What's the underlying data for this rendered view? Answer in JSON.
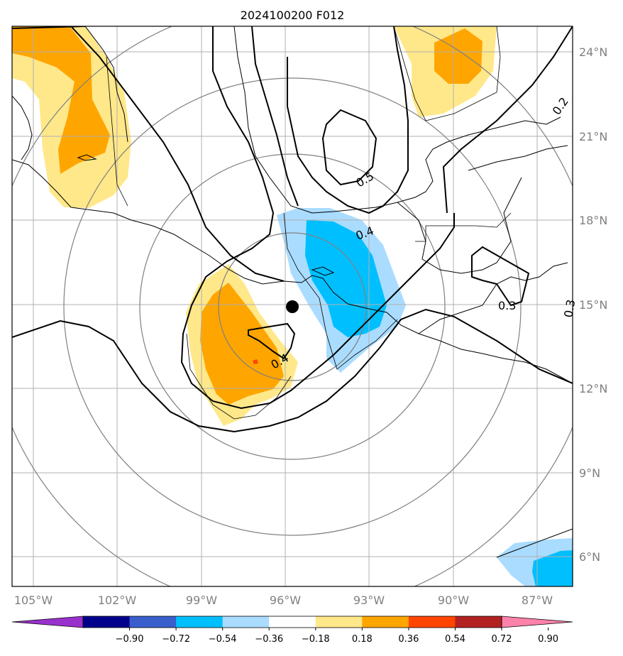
{
  "title": "2024100200 F012",
  "lon_ticks": [
    "105°W",
    "102°W",
    "99°W",
    "96°W",
    "93°W",
    "90°W",
    "87°W"
  ],
  "lat_ticks": [
    "24°N",
    "21°N",
    "18°N",
    "15°N",
    "12°N",
    "9°N",
    "6°N"
  ],
  "colorbar": {
    "levels": [
      "−0.90",
      "−0.72",
      "−0.54",
      "−0.36",
      "−0.18",
      "0.18",
      "0.36",
      "0.54",
      "0.72",
      "0.90"
    ],
    "colors": [
      "#9932cc",
      "#00008b",
      "#3a5fcd",
      "#00bfff",
      "#aadcff",
      "#ffffff",
      "#ffe88a",
      "#ffa500",
      "#ff4500",
      "#b22222",
      "#ff82ab"
    ]
  },
  "contour_labels": [
    "0.5",
    "0.4",
    "0.4",
    "0.3",
    "0.2",
    "0.3"
  ],
  "center_marker": "storm-center"
}
